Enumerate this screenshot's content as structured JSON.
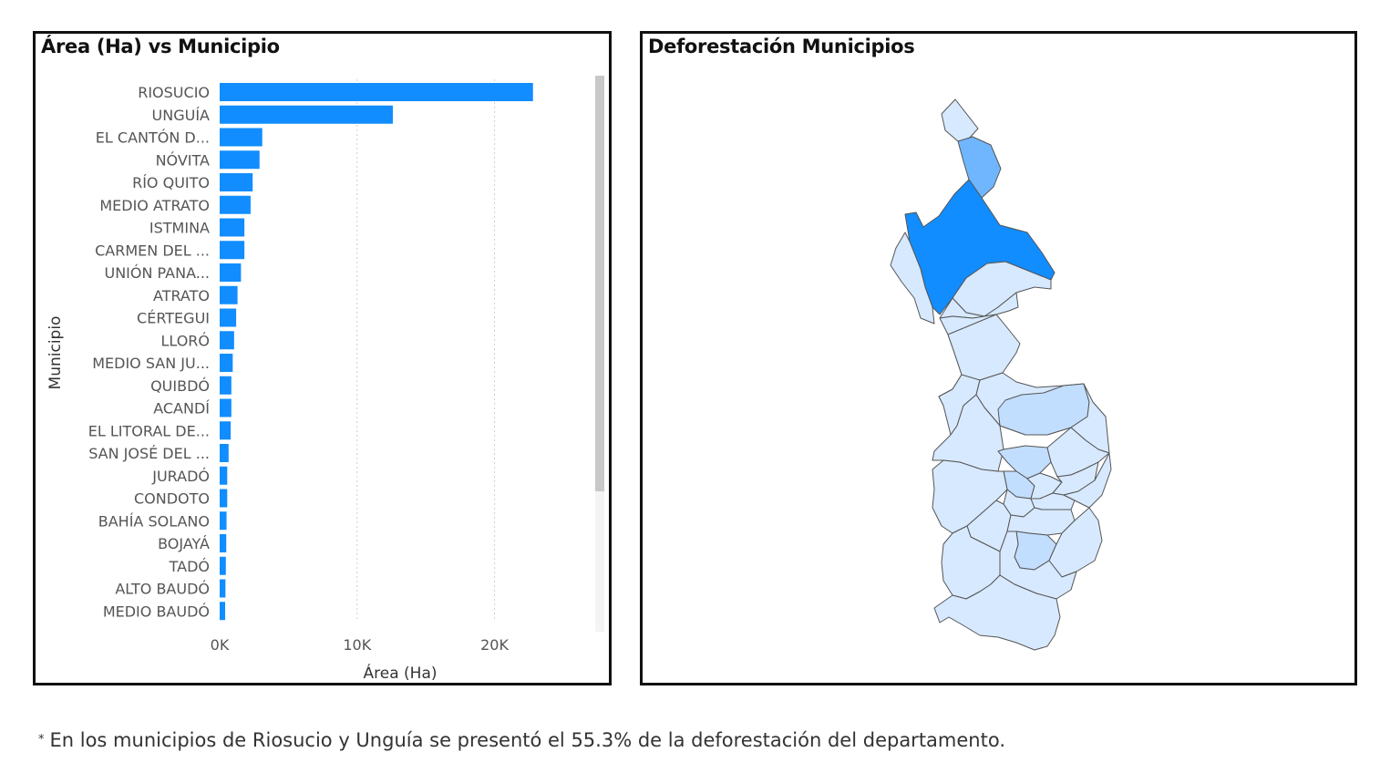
{
  "left_panel": {
    "title": "Área (Ha) vs Municipio"
  },
  "right_panel": {
    "title": "Deforestación Municipios"
  },
  "footnote": {
    "marker": "*",
    "text": "En los municipios de Riosucio y Unguía se presentó el 55.3% de la deforestación del departamento."
  },
  "colors": {
    "bar": "#118DFF",
    "map_high": "#118DFF",
    "map_mid": "#6FB6FF",
    "map_low": "#D7E9FF",
    "map_lowmid": "#C2DEFF",
    "map_stroke": "#555555"
  },
  "chart_data": {
    "type": "bar",
    "orientation": "horizontal",
    "title": "Área (Ha) vs Municipio",
    "xlabel": "Área (Ha)",
    "ylabel": "Municipio",
    "xlim": [
      0,
      26000
    ],
    "xticks": [
      {
        "value": 0,
        "label": "0K"
      },
      {
        "value": 10000,
        "label": "10K"
      },
      {
        "value": 20000,
        "label": "20K"
      }
    ],
    "grid": "vertical dotted",
    "categories": [
      "RIOSUCIO",
      "UNGUÍA",
      "EL CANTÓN D...",
      "NÓVITA",
      "RÍO QUITO",
      "MEDIO ATRATO",
      "ISTMINA",
      "CARMEN DEL ...",
      "UNIÓN PANA...",
      "ATRATO",
      "CÉRTEGUI",
      "LLORÓ",
      "MEDIO SAN JU...",
      "QUIBDÓ",
      "ACANDÍ",
      "EL LITORAL DE...",
      "SAN JOSÉ DEL ...",
      "JURADÓ",
      "CONDOTO",
      "BAHÍA SOLANO",
      "BOJAYÁ",
      "TADÓ",
      "ALTO BAUDÓ",
      "MEDIO BAUDÓ"
    ],
    "values": [
      22800,
      12600,
      3100,
      2900,
      2400,
      2250,
      1800,
      1800,
      1550,
      1300,
      1200,
      1050,
      950,
      850,
      850,
      800,
      650,
      550,
      550,
      500,
      480,
      450,
      420,
      400
    ]
  }
}
